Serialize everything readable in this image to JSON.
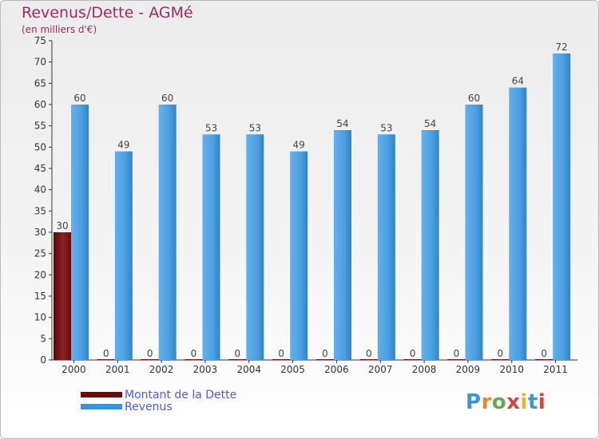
{
  "title": "Revenus/Dette - AGMé",
  "subtitle": "(en milliers d'€)",
  "legend": {
    "debt": "Montant de la Dette",
    "revenue": "Revenus"
  },
  "logo": {
    "text": "Proxiti"
  },
  "colors": {
    "title": "#9b2d5a",
    "debt": "#6e0a0a",
    "revenue": "#3d95d8",
    "legend_text": "#4f5bd5"
  },
  "chart_data": {
    "type": "bar",
    "title": "Revenus/Dette - AGMé",
    "ylabel": "(en milliers d'€)",
    "xlabel": "",
    "categories": [
      "2000",
      "2001",
      "2002",
      "2003",
      "2004",
      "2005",
      "2006",
      "2007",
      "2008",
      "2009",
      "2010",
      "2011"
    ],
    "series": [
      {
        "name": "Montant de la Dette",
        "values": [
          30,
          0,
          0,
          0,
          0,
          0,
          0,
          0,
          0,
          0,
          0,
          0
        ]
      },
      {
        "name": "Revenus",
        "values": [
          60,
          49,
          60,
          53,
          53,
          49,
          54,
          53,
          54,
          60,
          64,
          72
        ]
      }
    ],
    "ylim": [
      0,
      75
    ],
    "yticks": [
      0,
      5,
      10,
      15,
      20,
      25,
      30,
      35,
      40,
      45,
      50,
      55,
      60,
      65,
      70,
      75
    ],
    "grid": false,
    "legend_position": "bottom-left"
  }
}
